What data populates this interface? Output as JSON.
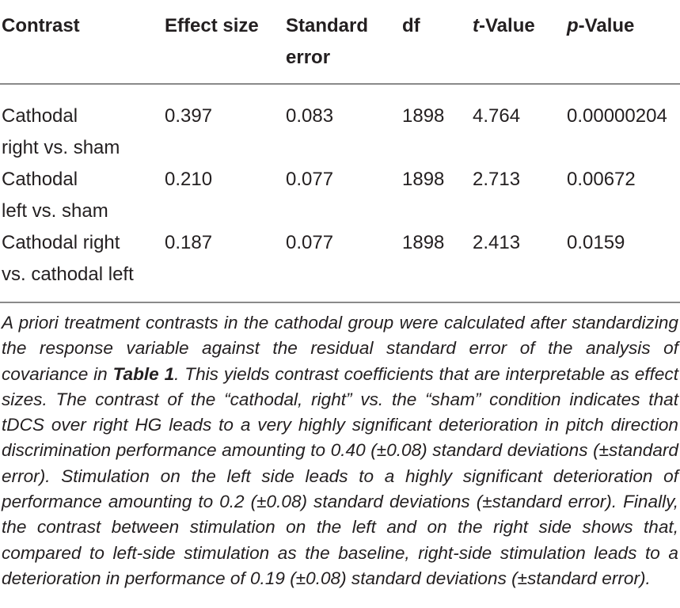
{
  "table": {
    "headers": [
      {
        "prefix": "",
        "italic": "",
        "text": "Contrast"
      },
      {
        "prefix": "",
        "italic": "",
        "text": "Effect size"
      },
      {
        "prefix": "",
        "italic": "",
        "text": "Standard error"
      },
      {
        "prefix": "",
        "italic": "",
        "text": "df"
      },
      {
        "prefix": "",
        "italic": "t",
        "text": "-Value"
      },
      {
        "prefix": "",
        "italic": "p",
        "text": "-Value"
      }
    ],
    "rows": [
      {
        "contrast_line1": "Cathodal",
        "contrast_line2": "right vs. sham",
        "effect_size": "0.397",
        "standard_error": "0.083",
        "df": "1898",
        "t_value": "4.764",
        "p_value": "0.00000204"
      },
      {
        "contrast_line1": "Cathodal",
        "contrast_line2": "left vs. sham",
        "effect_size": "0.210",
        "standard_error": "0.077",
        "df": "1898",
        "t_value": "2.713",
        "p_value": "0.00672"
      },
      {
        "contrast_line1": "Cathodal right",
        "contrast_line2": "vs. cathodal left",
        "effect_size": "0.187",
        "standard_error": "0.077",
        "df": "1898",
        "t_value": "2.413",
        "p_value": "0.0159"
      }
    ]
  },
  "caption": {
    "part1": "A priori treatment contrasts in the cathodal group were calculated after standardizing the response variable against the residual standard error of the analysis of covariance in ",
    "table_ref": "Table 1",
    "part2": ". This yields contrast coefficients that are interpretable as effect sizes. The contrast of the “cathodal, right” vs. the “sham” condition indicates that tDCS over right HG leads to a very highly significant deterioration in pitch direction discrimination performance amounting to 0.40 (±0.08) standard deviations (±standard error). Stimulation on the left side leads to a highly significant deterioration of performance amounting to 0.2 (±0.08) standard deviations (±standard error). Finally, the contrast between stimulation on the left and on the right side shows that, compared to left-side stimulation as the baseline, right-side stimulation leads to a deterioration in performance of 0.19 (±0.08) standard deviations (±standard error)."
  }
}
